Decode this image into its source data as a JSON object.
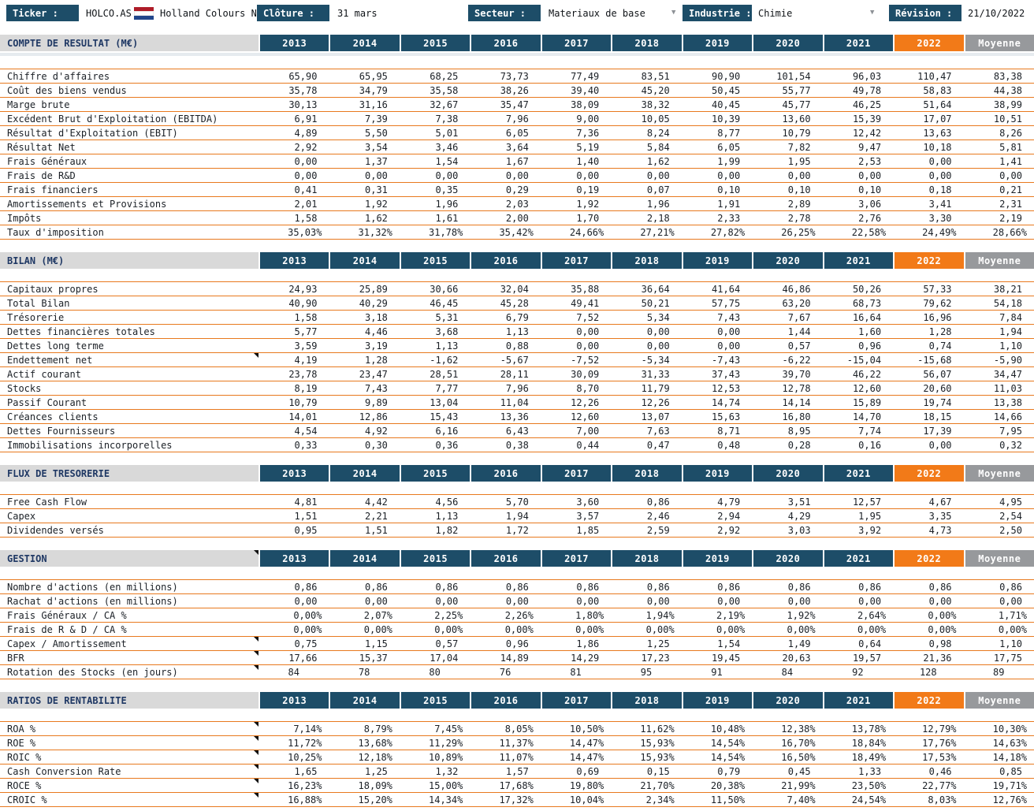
{
  "topbar": {
    "ticker_label": "Ticker :",
    "ticker_value": "HOLCO.AS",
    "flag": "netherlands-flag",
    "company": "Holland Colours NV",
    "cloture_label": "Clôture :",
    "cloture_value": "31 mars",
    "secteur_label": "Secteur :",
    "secteur_value": "Materiaux de base",
    "industrie_label": "Industrie :",
    "industrie_value": "Chimie",
    "revision_label": "Révision :",
    "revision_value": "21/10/2022",
    "dropdown_arrow": "▼"
  },
  "colors": {
    "navy": "#1d4d68",
    "orange_2022": "#f27a18",
    "gray_moyenne": "#97999c",
    "row_border": "#e8791e",
    "section_bg": "#d9d9d9"
  },
  "columns": [
    "2013",
    "2014",
    "2015",
    "2016",
    "2017",
    "2018",
    "2019",
    "2020",
    "2021",
    "2022",
    "Moyenne"
  ],
  "sections": [
    {
      "title": "COMPTE DE RESULTAT (M€)",
      "title_marker": false,
      "freeze_strip": true,
      "rows": [
        {
          "label": "Chiffre d'affaires",
          "marker": false,
          "values": [
            "65,90",
            "65,95",
            "68,25",
            "73,73",
            "77,49",
            "83,51",
            "90,90",
            "101,54",
            "96,03",
            "110,47",
            "83,38"
          ]
        },
        {
          "label": "Coût des biens vendus",
          "marker": false,
          "values": [
            "35,78",
            "34,79",
            "35,58",
            "38,26",
            "39,40",
            "45,20",
            "50,45",
            "55,77",
            "49,78",
            "58,83",
            "44,38"
          ]
        },
        {
          "label": "Marge brute",
          "marker": false,
          "values": [
            "30,13",
            "31,16",
            "32,67",
            "35,47",
            "38,09",
            "38,32",
            "40,45",
            "45,77",
            "46,25",
            "51,64",
            "38,99"
          ]
        },
        {
          "label": "Excédent Brut d'Exploitation (EBITDA)",
          "marker": false,
          "values": [
            "6,91",
            "7,39",
            "7,38",
            "7,96",
            "9,00",
            "10,05",
            "10,39",
            "13,60",
            "15,39",
            "17,07",
            "10,51"
          ]
        },
        {
          "label": "Résultat d'Exploitation (EBIT)",
          "marker": false,
          "values": [
            "4,89",
            "5,50",
            "5,01",
            "6,05",
            "7,36",
            "8,24",
            "8,77",
            "10,79",
            "12,42",
            "13,63",
            "8,26"
          ]
        },
        {
          "label": "Résultat Net",
          "marker": false,
          "values": [
            "2,92",
            "3,54",
            "3,46",
            "3,64",
            "5,19",
            "5,84",
            "6,05",
            "7,82",
            "9,47",
            "10,18",
            "5,81"
          ]
        },
        {
          "label": "Frais Généraux",
          "marker": false,
          "values": [
            "0,00",
            "1,37",
            "1,54",
            "1,67",
            "1,40",
            "1,62",
            "1,99",
            "1,95",
            "2,53",
            "0,00",
            "1,41"
          ]
        },
        {
          "label": "Frais de R&D",
          "marker": false,
          "values": [
            "0,00",
            "0,00",
            "0,00",
            "0,00",
            "0,00",
            "0,00",
            "0,00",
            "0,00",
            "0,00",
            "0,00",
            "0,00"
          ]
        },
        {
          "label": "Frais financiers",
          "marker": false,
          "values": [
            "0,41",
            "0,31",
            "0,35",
            "0,29",
            "0,19",
            "0,07",
            "0,10",
            "0,10",
            "0,10",
            "0,18",
            "0,21"
          ]
        },
        {
          "label": "Amortissements et Provisions",
          "marker": false,
          "values": [
            "2,01",
            "1,92",
            "1,96",
            "2,03",
            "1,92",
            "1,96",
            "1,91",
            "2,89",
            "3,06",
            "3,41",
            "2,31"
          ]
        },
        {
          "label": "Impôts",
          "marker": false,
          "values": [
            "1,58",
            "1,62",
            "1,61",
            "2,00",
            "1,70",
            "2,18",
            "2,33",
            "2,78",
            "2,76",
            "3,30",
            "2,19"
          ]
        },
        {
          "label": "Taux d'imposition",
          "marker": false,
          "values": [
            "35,03%",
            "31,32%",
            "31,78%",
            "35,42%",
            "24,66%",
            "27,21%",
            "27,82%",
            "26,25%",
            "22,58%",
            "24,49%",
            "28,66%"
          ]
        }
      ]
    },
    {
      "title": "BILAN (M€)",
      "title_marker": false,
      "freeze_strip": false,
      "rows": [
        {
          "label": "Capitaux propres",
          "marker": false,
          "values": [
            "24,93",
            "25,89",
            "30,66",
            "32,04",
            "35,88",
            "36,64",
            "41,64",
            "46,86",
            "50,26",
            "57,33",
            "38,21"
          ]
        },
        {
          "label": "Total Bilan",
          "marker": false,
          "values": [
            "40,90",
            "40,29",
            "46,45",
            "45,28",
            "49,41",
            "50,21",
            "57,75",
            "63,20",
            "68,73",
            "79,62",
            "54,18"
          ]
        },
        {
          "label": "Trésorerie",
          "marker": false,
          "values": [
            "1,58",
            "3,18",
            "5,31",
            "6,79",
            "7,52",
            "5,34",
            "7,43",
            "7,67",
            "16,64",
            "16,96",
            "7,84"
          ]
        },
        {
          "label": "Dettes financières totales",
          "marker": false,
          "values": [
            "5,77",
            "4,46",
            "3,68",
            "1,13",
            "0,00",
            "0,00",
            "0,00",
            "1,44",
            "1,60",
            "1,28",
            "1,94"
          ]
        },
        {
          "label": "Dettes long terme",
          "marker": false,
          "values": [
            "3,59",
            "3,19",
            "1,13",
            "0,88",
            "0,00",
            "0,00",
            "0,00",
            "0,57",
            "0,96",
            "0,74",
            "1,10"
          ]
        },
        {
          "label": "Endettement net",
          "marker": true,
          "values": [
            "4,19",
            "1,28",
            "-1,62",
            "-5,67",
            "-7,52",
            "-5,34",
            "-7,43",
            "-6,22",
            "-15,04",
            "-15,68",
            "-5,90"
          ]
        },
        {
          "label": "Actif courant",
          "marker": false,
          "values": [
            "23,78",
            "23,47",
            "28,51",
            "28,11",
            "30,09",
            "31,33",
            "37,43",
            "39,70",
            "46,22",
            "56,07",
            "34,47"
          ]
        },
        {
          "label": "Stocks",
          "marker": false,
          "values": [
            "8,19",
            "7,43",
            "7,77",
            "7,96",
            "8,70",
            "11,79",
            "12,53",
            "12,78",
            "12,60",
            "20,60",
            "11,03"
          ]
        },
        {
          "label": "Passif Courant",
          "marker": false,
          "values": [
            "10,79",
            "9,89",
            "13,04",
            "11,04",
            "12,26",
            "12,26",
            "14,74",
            "14,14",
            "15,89",
            "19,74",
            "13,38"
          ]
        },
        {
          "label": "Créances clients",
          "marker": false,
          "values": [
            "14,01",
            "12,86",
            "15,43",
            "13,36",
            "12,60",
            "13,07",
            "15,63",
            "16,80",
            "14,70",
            "18,15",
            "14,66"
          ]
        },
        {
          "label": "Dettes Fournisseurs",
          "marker": false,
          "values": [
            "4,54",
            "4,92",
            "6,16",
            "6,43",
            "7,00",
            "7,63",
            "8,71",
            "8,95",
            "7,74",
            "17,39",
            "7,95"
          ]
        },
        {
          "label": "Immobilisations incorporelles",
          "marker": false,
          "values": [
            "0,33",
            "0,30",
            "0,36",
            "0,38",
            "0,44",
            "0,47",
            "0,48",
            "0,28",
            "0,16",
            "0,00",
            "0,32"
          ]
        }
      ]
    },
    {
      "title": "FLUX DE TRESORERIE",
      "title_marker": false,
      "freeze_strip": false,
      "rows": [
        {
          "label": "Free Cash Flow",
          "marker": false,
          "values": [
            "4,81",
            "4,42",
            "4,56",
            "5,70",
            "3,60",
            "0,86",
            "4,79",
            "3,51",
            "12,57",
            "4,67",
            "4,95"
          ]
        },
        {
          "label": "Capex",
          "marker": false,
          "values": [
            "1,51",
            "2,21",
            "1,13",
            "1,94",
            "3,57",
            "2,46",
            "2,94",
            "4,29",
            "1,95",
            "3,35",
            "2,54"
          ]
        },
        {
          "label": "Dividendes versés",
          "marker": false,
          "values": [
            "0,95",
            "1,51",
            "1,82",
            "1,72",
            "1,85",
            "2,59",
            "2,92",
            "3,03",
            "3,92",
            "4,73",
            "2,50"
          ]
        }
      ]
    },
    {
      "title": "GESTION",
      "title_marker": true,
      "freeze_strip": false,
      "rows": [
        {
          "label": "Nombre d'actions (en millions)",
          "marker": false,
          "values": [
            "0,86",
            "0,86",
            "0,86",
            "0,86",
            "0,86",
            "0,86",
            "0,86",
            "0,86",
            "0,86",
            "0,86",
            "0,86"
          ]
        },
        {
          "label": "Rachat d'actions (en millions)",
          "marker": false,
          "values": [
            "0,00",
            "0,00",
            "0,00",
            "0,00",
            "0,00",
            "0,00",
            "0,00",
            "0,00",
            "0,00",
            "0,00",
            "0,00"
          ]
        },
        {
          "label": "Frais Généraux / CA %",
          "marker": false,
          "values": [
            "0,00%",
            "2,07%",
            "2,25%",
            "2,26%",
            "1,80%",
            "1,94%",
            "2,19%",
            "1,92%",
            "2,64%",
            "0,00%",
            "1,71%"
          ]
        },
        {
          "label": "Frais de R & D / CA %",
          "marker": false,
          "values": [
            "0,00%",
            "0,00%",
            "0,00%",
            "0,00%",
            "0,00%",
            "0,00%",
            "0,00%",
            "0,00%",
            "0,00%",
            "0,00%",
            "0,00%"
          ]
        },
        {
          "label": "Capex / Amortissement",
          "marker": true,
          "values": [
            "0,75",
            "1,15",
            "0,57",
            "0,96",
            "1,86",
            "1,25",
            "1,54",
            "1,49",
            "0,64",
            "0,98",
            "1,10"
          ]
        },
        {
          "label": "BFR",
          "marker": true,
          "values": [
            "17,66",
            "15,37",
            "17,04",
            "14,89",
            "14,29",
            "17,23",
            "19,45",
            "20,63",
            "19,57",
            "21,36",
            "17,75"
          ]
        },
        {
          "label": "Rotation des Stocks (en jours)",
          "marker": true,
          "values": [
            "84",
            "78",
            "80",
            "76",
            "81",
            "95",
            "91",
            "84",
            "92",
            "128",
            "89"
          ]
        }
      ]
    },
    {
      "title": "RATIOS DE RENTABILITE",
      "title_marker": false,
      "freeze_strip": false,
      "rows": [
        {
          "label": "ROA %",
          "marker": true,
          "values": [
            "7,14%",
            "8,79%",
            "7,45%",
            "8,05%",
            "10,50%",
            "11,62%",
            "10,48%",
            "12,38%",
            "13,78%",
            "12,79%",
            "10,30%"
          ]
        },
        {
          "label": "ROE %",
          "marker": true,
          "values": [
            "11,72%",
            "13,68%",
            "11,29%",
            "11,37%",
            "14,47%",
            "15,93%",
            "14,54%",
            "16,70%",
            "18,84%",
            "17,76%",
            "14,63%"
          ]
        },
        {
          "label": "ROIC %",
          "marker": true,
          "values": [
            "10,25%",
            "12,18%",
            "10,89%",
            "11,07%",
            "14,47%",
            "15,93%",
            "14,54%",
            "16,50%",
            "18,49%",
            "17,53%",
            "14,18%"
          ]
        },
        {
          "label": "Cash Conversion Rate",
          "marker": true,
          "values": [
            "1,65",
            "1,25",
            "1,32",
            "1,57",
            "0,69",
            "0,15",
            "0,79",
            "0,45",
            "1,33",
            "0,46",
            "0,85"
          ]
        },
        {
          "label": "ROCE %",
          "marker": true,
          "values": [
            "16,23%",
            "18,09%",
            "15,00%",
            "17,68%",
            "19,80%",
            "21,70%",
            "20,38%",
            "21,99%",
            "23,50%",
            "22,77%",
            "19,71%"
          ]
        },
        {
          "label": "CROIC %",
          "marker": true,
          "values": [
            "16,88%",
            "15,20%",
            "14,34%",
            "17,32%",
            "10,04%",
            "2,34%",
            "11,50%",
            "7,40%",
            "24,54%",
            "8,03%",
            "12,76%"
          ]
        }
      ]
    }
  ]
}
